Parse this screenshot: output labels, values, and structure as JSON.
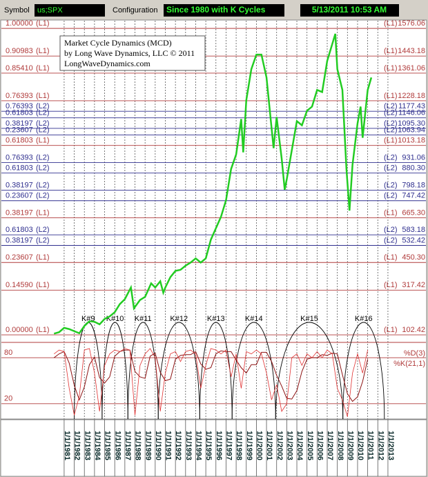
{
  "header": {
    "symbol_label": "Symbol",
    "symbol": "us;SPX",
    "config_label": "Configuration",
    "config": "Since 1980 with K Cycles",
    "timestamp": "5/13/2011 10:53 AM"
  },
  "chart_data": {
    "type": "line",
    "title": "Market Cycle Dynamics (MCD)",
    "subtitle": "by Long Wave Dynamics, LLC © 2011",
    "website": "LongWaveDynamics.com",
    "color": "#22cc22",
    "x": [
      1980.0,
      1980.5,
      1981.0,
      1981.5,
      1982.0,
      1982.5,
      1983.0,
      1983.5,
      1984.0,
      1984.5,
      1985.0,
      1985.5,
      1986.0,
      1986.5,
      1987.0,
      1987.6,
      1987.9,
      1988.5,
      1989.0,
      1989.6,
      1990.0,
      1990.5,
      1990.8,
      1991.0,
      1991.5,
      1992.0,
      1992.5,
      1993.0,
      1993.5,
      1994.0,
      1994.5,
      1995.0,
      1995.5,
      1996.0,
      1996.5,
      1997.0,
      1997.5,
      1998.0,
      1998.5,
      1998.7,
      1999.0,
      1999.5,
      2000.0,
      2000.5,
      2001.0,
      2001.7,
      2002.0,
      2002.5,
      2002.8,
      2003.0,
      2003.5,
      2004.0,
      2004.5,
      2005.0,
      2005.5,
      2006.0,
      2006.5,
      2007.0,
      2007.8,
      2008.0,
      2008.5,
      2008.9,
      2009.2,
      2009.5,
      2010.0,
      2010.3,
      2010.5,
      2011.0,
      2011.36
    ],
    "values": [
      108,
      115,
      136,
      130,
      120,
      110,
      145,
      168,
      165,
      153,
      179,
      191,
      211,
      250,
      274,
      330,
      230,
      270,
      285,
      350,
      330,
      360,
      305,
      330,
      380,
      410,
      415,
      435,
      450,
      470,
      450,
      470,
      560,
      615,
      670,
      750,
      900,
      970,
      1140,
      980,
      1230,
      1380,
      1450,
      1450,
      1340,
      1000,
      1150,
      950,
      800,
      850,
      990,
      1130,
      1110,
      1180,
      1200,
      1280,
      1270,
      1420,
      1550,
      1380,
      1280,
      900,
      700,
      920,
      1120,
      1200,
      1050,
      1280,
      1340
    ],
    "xlim": [
      1979.3,
      2014.3
    ],
    "ylim": [
      76,
      1613
    ],
    "xticks": [
      {
        "value": 1981,
        "label": "1/1/1981"
      },
      {
        "value": 1982,
        "label": "1/1/1982"
      },
      {
        "value": 1983,
        "label": "1/1/1983"
      },
      {
        "value": 1984,
        "label": "1/1/1984"
      },
      {
        "value": 1985,
        "label": "1/1/1985"
      },
      {
        "value": 1986,
        "label": "1/1/1986"
      },
      {
        "value": 1987,
        "label": "1/1/1987"
      },
      {
        "value": 1988,
        "label": "1/1/1988"
      },
      {
        "value": 1989,
        "label": "1/1/1989"
      },
      {
        "value": 1990,
        "label": "1/1/1990"
      },
      {
        "value": 1991,
        "label": "1/1/1991"
      },
      {
        "value": 1992,
        "label": "1/1/1992"
      },
      {
        "value": 1993,
        "label": "1/1/1993"
      },
      {
        "value": 1994,
        "label": "1/1/1994"
      },
      {
        "value": 1995,
        "label": "1/1/1995"
      },
      {
        "value": 1996,
        "label": "1/1/1996"
      },
      {
        "value": 1997,
        "label": "1/1/1997"
      },
      {
        "value": 1998,
        "label": "1/1/1998"
      },
      {
        "value": 1999,
        "label": "1/1/1999"
      },
      {
        "value": 2000,
        "label": "1/1/2000"
      },
      {
        "value": 2001,
        "label": "1/1/2001"
      },
      {
        "value": 2002,
        "label": "1/1/2002"
      },
      {
        "value": 2003,
        "label": "1/1/2003"
      },
      {
        "value": 2004,
        "label": "1/1/2004"
      },
      {
        "value": 2005,
        "label": "1/1/2005"
      },
      {
        "value": 2006,
        "label": "1/1/2006"
      },
      {
        "value": 2007,
        "label": "1/1/2007"
      },
      {
        "value": 2008,
        "label": "1/1/2008"
      },
      {
        "value": 2009,
        "label": "1/1/2009"
      },
      {
        "value": 2010,
        "label": "1/1/2010"
      },
      {
        "value": 2011,
        "label": "1/1/2011"
      },
      {
        "value": 2012,
        "label": "1/1/2012"
      },
      {
        "value": 2013,
        "label": "1/1/2013"
      }
    ],
    "levels": [
      {
        "ratio": "1.00000",
        "group": "(L1)",
        "value": 1576.06,
        "value_label": "1576.06",
        "color": "#b03a3a"
      },
      {
        "ratio": "0.90983",
        "group": "(L1)",
        "value": 1443.18,
        "value_label": "1443.18",
        "color": "#b03a3a"
      },
      {
        "ratio": "0.85410",
        "group": "(L1)",
        "value": 1361.06,
        "value_label": "1361.06",
        "color": "#b03a3a"
      },
      {
        "ratio": "0.76393",
        "group": "(L1)",
        "value": 1228.18,
        "value_label": "1228.18",
        "color": "#b03a3a"
      },
      {
        "ratio": "0.76393",
        "group": "(L2)",
        "value": 1177.43,
        "value_label": "1177.43",
        "color": "#2e2e8e"
      },
      {
        "ratio": "0.61803",
        "group": "(L2)",
        "value": 1146.06,
        "value_label": "1146.06",
        "color": "#2e2e8e"
      },
      {
        "ratio": "0.38197",
        "group": "(L2)",
        "value": 1095.3,
        "value_label": "1095.30",
        "color": "#2e2e8e"
      },
      {
        "ratio": "0.23607",
        "group": "(L2)",
        "value": 1063.94,
        "value_label": "1063.94",
        "color": "#2e2e8e"
      },
      {
        "ratio": "0.61803",
        "group": "(L1)",
        "value": 1013.18,
        "value_label": "1013.18",
        "color": "#b03a3a"
      },
      {
        "ratio": "0.76393",
        "group": "(L2)",
        "value": 931.06,
        "value_label": "931.06",
        "color": "#2e2e8e"
      },
      {
        "ratio": "0.61803",
        "group": "(L2)",
        "value": 880.3,
        "value_label": "880.30",
        "color": "#2e2e8e"
      },
      {
        "ratio": "0.38197",
        "group": "(L2)",
        "value": 798.18,
        "value_label": "798.18",
        "color": "#2e2e8e"
      },
      {
        "ratio": "0.23607",
        "group": "(L2)",
        "value": 747.42,
        "value_label": "747.42",
        "color": "#2e2e8e"
      },
      {
        "ratio": "0.38197",
        "group": "(L1)",
        "value": 665.3,
        "value_label": "665.30",
        "color": "#b03a3a"
      },
      {
        "ratio": "0.61803",
        "group": "(L2)",
        "value": 583.18,
        "value_label": "583.18",
        "color": "#2e2e8e"
      },
      {
        "ratio": "0.38197",
        "group": "(L2)",
        "value": 532.42,
        "value_label": "532.42",
        "color": "#2e2e8e"
      },
      {
        "ratio": "0.23607",
        "group": "(L1)",
        "value": 450.3,
        "value_label": "450.30",
        "color": "#b03a3a"
      },
      {
        "ratio": "0.14590",
        "group": "(L1)",
        "value": 317.42,
        "value_label": "317.42",
        "color": "#b03a3a"
      },
      {
        "ratio": "0.00000",
        "group": "(L1)",
        "value": 102.42,
        "value_label": "102.42",
        "color": "#b03a3a"
      }
    ],
    "cycles": [
      {
        "name": "K#9",
        "start": 1982.0,
        "end": 1984.75
      },
      {
        "name": "K#10",
        "start": 1984.75,
        "end": 1987.3
      },
      {
        "name": "K#11",
        "start": 1987.3,
        "end": 1990.3
      },
      {
        "name": "K#12",
        "start": 1990.3,
        "end": 1994.4
      },
      {
        "name": "K#13",
        "start": 1994.4,
        "end": 1997.6
      },
      {
        "name": "K#14",
        "start": 1997.6,
        "end": 2001.9
      },
      {
        "name": "K#15",
        "start": 2001.9,
        "end": 2008.55
      },
      {
        "name": "K#16",
        "start": 2008.55,
        "end": 2012.65
      }
    ],
    "oscillator": {
      "ylim": [
        0,
        100
      ],
      "yticks": [
        20,
        80
      ],
      "x": [
        1980,
        1980.5,
        1981,
        1981.5,
        1982,
        1982.5,
        1983,
        1983.5,
        1984,
        1984.5,
        1985,
        1985.5,
        1986,
        1986.5,
        1987,
        1987.5,
        1988,
        1988.5,
        1989,
        1989.5,
        1990,
        1990.5,
        1991,
        1991.5,
        1992,
        1992.5,
        1993,
        1993.5,
        1994,
        1994.5,
        1995,
        1995.5,
        1996,
        1996.5,
        1997,
        1997.5,
        1998,
        1998.5,
        1999,
        1999.5,
        2000,
        2000.5,
        2001,
        2001.5,
        2002,
        2002.5,
        2003,
        2003.5,
        2004,
        2004.5,
        2005,
        2005.5,
        2006,
        2006.5,
        2007,
        2007.5,
        2008,
        2008.5,
        2009,
        2009.5,
        2010,
        2010.5,
        2011
      ],
      "series": [
        {
          "name": "%D(3)",
          "color": "#8b1010",
          "values": [
            80,
            85,
            88,
            73,
            44,
            25,
            42,
            71,
            81,
            54,
            47,
            55,
            82,
            88,
            90,
            90,
            62,
            55,
            53,
            82,
            86,
            61,
            50,
            52,
            78,
            83,
            84,
            84,
            88,
            72,
            65,
            67,
            85,
            89,
            88,
            88,
            77,
            67,
            60,
            71,
            71,
            87,
            87,
            75,
            57,
            43,
            27,
            26,
            37,
            62,
            78,
            80,
            80,
            84,
            83,
            86,
            85,
            58,
            33,
            23,
            29,
            49,
            78
          ]
        },
        {
          "name": "%K(21,1)",
          "color": "#e03030",
          "values": [
            85,
            90,
            88,
            40,
            5,
            30,
            90,
            92,
            60,
            10,
            70,
            85,
            90,
            88,
            92,
            90,
            5,
            70,
            85,
            92,
            80,
            10,
            60,
            85,
            88,
            75,
            88,
            90,
            85,
            40,
            70,
            92,
            90,
            85,
            90,
            55,
            85,
            40,
            88,
            85,
            90,
            85,
            60,
            25,
            45,
            10,
            20,
            80,
            85,
            70,
            85,
            80,
            88,
            80,
            90,
            85,
            40,
            25,
            3,
            60,
            85,
            60,
            90
          ]
        }
      ]
    }
  }
}
